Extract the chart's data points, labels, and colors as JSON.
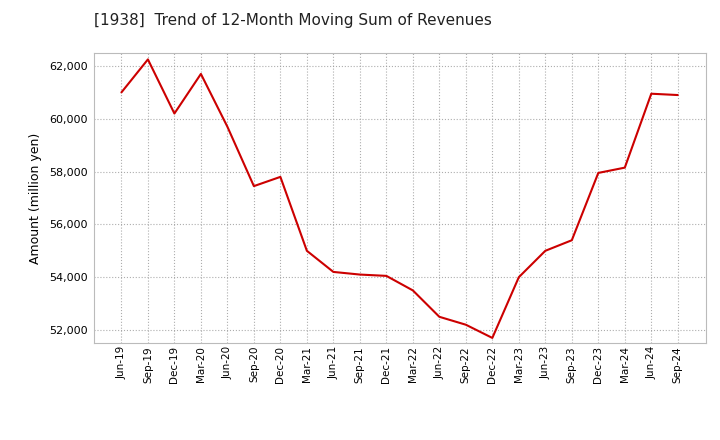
{
  "title": "[1938]  Trend of 12-Month Moving Sum of Revenues",
  "ylabel": "Amount (million yen)",
  "line_color": "#cc0000",
  "background_color": "#ffffff",
  "grid_color": "#999999",
  "ylim": [
    51500,
    62500
  ],
  "yticks": [
    52000,
    54000,
    56000,
    58000,
    60000,
    62000
  ],
  "labels": [
    "Jun-19",
    "Sep-19",
    "Dec-19",
    "Mar-20",
    "Jun-20",
    "Sep-20",
    "Dec-20",
    "Mar-21",
    "Jun-21",
    "Sep-21",
    "Dec-21",
    "Mar-22",
    "Jun-22",
    "Sep-22",
    "Dec-22",
    "Mar-23",
    "Jun-23",
    "Sep-23",
    "Dec-23",
    "Mar-24",
    "Jun-24",
    "Sep-24"
  ],
  "values": [
    61000,
    62250,
    60200,
    61700,
    59700,
    57450,
    57800,
    55000,
    54200,
    54100,
    54050,
    53500,
    52500,
    52200,
    51700,
    54000,
    55000,
    55400,
    57950,
    58150,
    60950,
    60900
  ]
}
